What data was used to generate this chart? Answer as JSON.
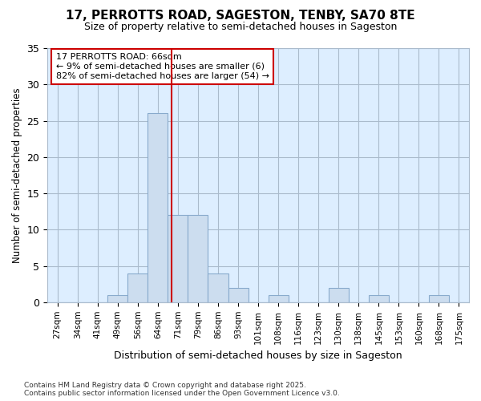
{
  "title": "17, PERROTTS ROAD, SAGESTON, TENBY, SA70 8TE",
  "subtitle": "Size of property relative to semi-detached houses in Sageston",
  "xlabel": "Distribution of semi-detached houses by size in Sageston",
  "ylabel": "Number of semi-detached properties",
  "footnote": "Contains HM Land Registry data © Crown copyright and database right 2025.\nContains public sector information licensed under the Open Government Licence v3.0.",
  "bar_labels": [
    "27sqm",
    "34sqm",
    "41sqm",
    "49sqm",
    "56sqm",
    "64sqm",
    "71sqm",
    "79sqm",
    "86sqm",
    "93sqm",
    "101sqm",
    "108sqm",
    "116sqm",
    "123sqm",
    "130sqm",
    "138sqm",
    "145sqm",
    "153sqm",
    "160sqm",
    "168sqm",
    "175sqm"
  ],
  "bar_values": [
    0,
    0,
    0,
    1,
    4,
    26,
    12,
    12,
    4,
    2,
    0,
    1,
    0,
    0,
    2,
    0,
    1,
    0,
    0,
    1,
    0
  ],
  "bar_color": "#ccddef",
  "bar_edge_color": "#88aacc",
  "vline_x": 5.7,
  "vline_color": "#cc0000",
  "annotation_text": "17 PERROTTS ROAD: 66sqm\n← 9% of semi-detached houses are smaller (6)\n82% of semi-detached houses are larger (54) →",
  "annotation_box_color": "white",
  "annotation_box_edgecolor": "#cc0000",
  "ylim": [
    0,
    35
  ],
  "yticks": [
    0,
    5,
    10,
    15,
    20,
    25,
    30,
    35
  ],
  "background_color": "white",
  "plot_background_color": "#ddeeff",
  "grid_color": "#aabbcc"
}
